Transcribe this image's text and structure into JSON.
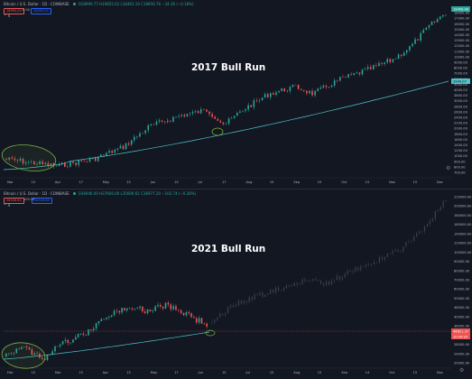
{
  "top": {
    "header": {
      "symbol": "Bitcoin / U.S. Dollar · 1D · COINBASE",
      "ohlc": "O18990.77 H19855.62 L18463.19 C18959.76 −34.36 (−0.18%)",
      "pills": [
        "18990.00",
        "0.00",
        "18990.00"
      ],
      "toggle": "^ 4"
    },
    "chart_data": {
      "type": "candlestick",
      "title": "2017 Bull Run",
      "price_labels": [
        "19000.00",
        "18000.00",
        "17000.00",
        "16000.00",
        "15000.00",
        "14000.00",
        "13000.00",
        "12000.00",
        "11000.00",
        "10000.00",
        "9000.00",
        "8000.00",
        "7000.00",
        "6000.00",
        "5000.00",
        "4000.00",
        "3800.00",
        "3000.00",
        "2800.00",
        "2600.00",
        "2400.00",
        "2200.00",
        "2000.00",
        "1800.00",
        "1600.00",
        "1400.00",
        "1200.00",
        "1000.00",
        "900.00",
        "800.00",
        "700.00"
      ],
      "time_labels": [
        "Mar",
        "15",
        "Apr",
        "17",
        "May",
        "15",
        "Jun",
        "15",
        "Jul",
        "17",
        "Aug",
        "15",
        "Sep",
        "15",
        "Oct",
        "15",
        "Nov",
        "15",
        "Dec"
      ],
      "last_price_labels": [
        "19450.00",
        "3949.07"
      ],
      "log_scale": true,
      "grid": false
    }
  },
  "bottom": {
    "header": {
      "symbol": "Bitcoin / U.S. Dollar · 1D · COINBASE",
      "ohlc": "O36946.00 H37600.00 L35609.61 C36977.20 −102.74 (−0.28%)",
      "pills": [
        "36946.80",
        "105.96",
        "36946.86"
      ],
      "toggle": "^ 4"
    },
    "chart_data": {
      "type": "candlestick",
      "title": "2021 Bull Run",
      "price_labels": [
        "220000.00",
        "200000.00",
        "180000.00",
        "160000.00",
        "140000.00",
        "120000.00",
        "100000.00",
        "90000.00",
        "80000.00",
        "70000.00",
        "60000.00",
        "50000.00",
        "46000.00",
        "40000.00",
        "36000.00",
        "32000.00",
        "28000.00",
        "24000.00",
        "20000.00"
      ],
      "time_labels": [
        "Feb",
        "15",
        "Mar",
        "15",
        "Apr",
        "15",
        "May",
        "17",
        "Jun",
        "15",
        "Jul",
        "15",
        "Aug",
        "15",
        "Sep",
        "14",
        "Oct",
        "15",
        "Nov"
      ],
      "last_price_labels": [
        "46621.37",
        "10:49:20"
      ],
      "log_scale": true,
      "grid": false
    }
  },
  "colors": {
    "background": "#131722",
    "up": "#26a69a",
    "down": "#ef5350",
    "ma": "#4fc3c9",
    "ellipse": "#7cb342",
    "ghost": "#3b4150"
  }
}
